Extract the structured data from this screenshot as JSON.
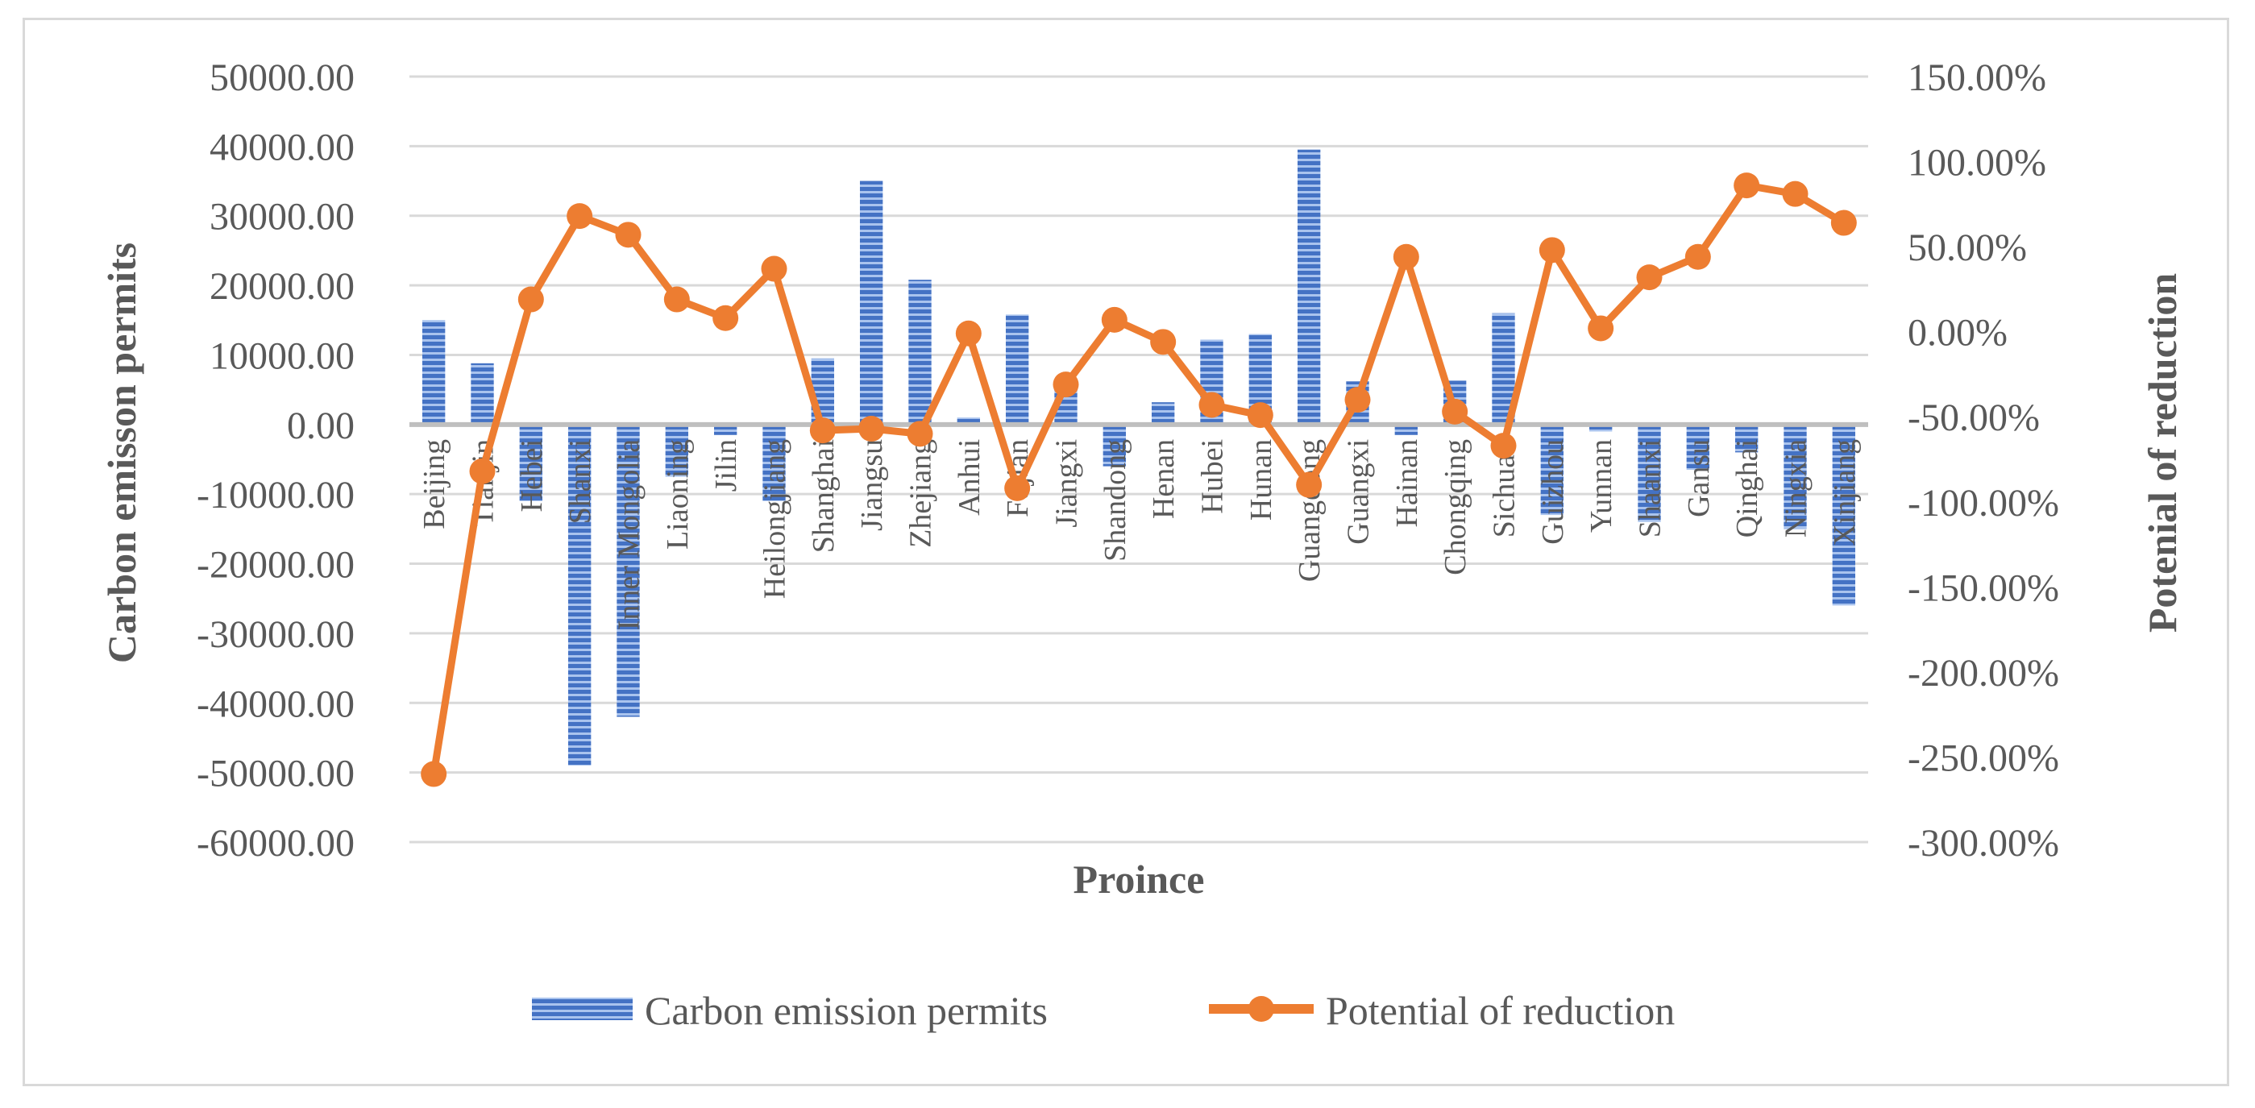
{
  "chart_data": {
    "type": "bar+line",
    "title": "",
    "xlabel": "Proince",
    "ylabel": "Carbon emisson permits",
    "y2label": "Potenial of reduction",
    "ylim": [
      -60000,
      50000
    ],
    "y2lim": [
      -3.0,
      1.5
    ],
    "yticks": [
      "50000.00",
      "40000.00",
      "30000.00",
      "20000.00",
      "10000.00",
      "0.00",
      "-10000.00",
      "-20000.00",
      "-30000.00",
      "-40000.00",
      "-50000.00",
      "-60000.00"
    ],
    "y2ticks": [
      "150.00%",
      "100.00%",
      "50.00%",
      "0.00%",
      "-50.00%",
      "-100.00%",
      "-150.00%",
      "-200.00%",
      "-250.00%",
      "-300.00%"
    ],
    "ytick_values": [
      50000,
      40000,
      30000,
      20000,
      10000,
      0,
      -10000,
      -20000,
      -30000,
      -40000,
      -50000,
      -60000
    ],
    "y2tick_values": [
      1.5,
      1.0,
      0.5,
      0.0,
      -0.5,
      -1.0,
      -1.5,
      -2.0,
      -2.5,
      -3.0
    ],
    "categories": [
      "Beijing",
      "Tianjin",
      "Hebei",
      "Shanxi",
      "Inner Mongolia",
      "Liaoning",
      "Jilin",
      "Heilongjiang",
      "Shanghai",
      "Jiangsu",
      "Zhejiang",
      "Anhui",
      "Fujian",
      "Jiangxi",
      "Shandong",
      "Henan",
      "Hubei",
      "Hunan",
      "Guangdong",
      "Guangxi",
      "Hainan",
      "Chongqing",
      "Sichuan",
      "Guizhou",
      "Yunnan",
      "Shaanxi",
      "Gansu",
      "Qinghai",
      "Ningxia",
      "Xinjiang"
    ],
    "series": [
      {
        "name": "Carbon emission permits",
        "type": "bar",
        "axis": "left",
        "color": "#4472c4",
        "values": [
          15000,
          8800,
          -11000,
          -49000,
          -42000,
          -7500,
          -1500,
          -11000,
          9500,
          35000,
          20800,
          1000,
          15800,
          6000,
          -6000,
          3200,
          12200,
          13000,
          39500,
          6200,
          -1500,
          6300,
          16000,
          -13000,
          -1000,
          -14000,
          -6500,
          -4000,
          -15000,
          -26000
        ]
      },
      {
        "name": "Potential of reduction",
        "type": "line",
        "axis": "right",
        "color": "#ed7d31",
        "values": [
          -2.6,
          -0.82,
          0.19,
          0.68,
          0.57,
          0.19,
          0.08,
          0.37,
          -0.58,
          -0.57,
          -0.6,
          -0.01,
          -0.92,
          -0.31,
          0.07,
          -0.06,
          -0.43,
          -0.49,
          -0.9,
          -0.4,
          0.44,
          -0.47,
          -0.67,
          0.48,
          0.02,
          0.32,
          0.44,
          0.86,
          0.81,
          0.64
        ]
      }
    ],
    "legend": [
      "Carbon emission permits",
      "Potential of reduction"
    ],
    "legend_position": "bottom",
    "grid": true
  },
  "colors": {
    "bar": "#4472c4",
    "line": "#ed7d31",
    "grid": "#d9d9d9",
    "text": "#595959"
  }
}
